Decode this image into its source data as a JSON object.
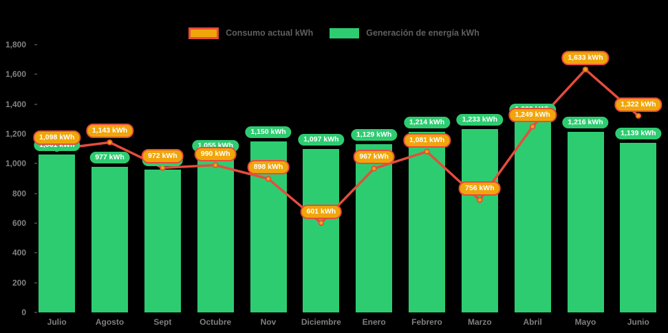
{
  "legend": {
    "items": [
      {
        "id": "consumption",
        "label": "Consumo actual kWh",
        "swatch_fill": "#F0A60B",
        "swatch_border": "#E74C3C"
      },
      {
        "id": "generation",
        "label": "Generación de energía kWh",
        "swatch_fill": "#2ECC71",
        "swatch_border": ""
      }
    ]
  },
  "y_axis": {
    "ticks": [
      {
        "label": "1,800",
        "value": 1800
      },
      {
        "label": "1,600",
        "value": 1600
      },
      {
        "label": "1,400",
        "value": 1400
      },
      {
        "label": "1,200",
        "value": 1200
      },
      {
        "label": "1,000",
        "value": 1000
      },
      {
        "label": "800",
        "value": 800
      },
      {
        "label": "600",
        "value": 600
      },
      {
        "label": "400",
        "value": 400
      },
      {
        "label": "200",
        "value": 200
      },
      {
        "label": "0",
        "value": 0
      }
    ]
  },
  "chart_data": {
    "type": "bar+line",
    "categories": [
      "Julio",
      "Agosto",
      "Sept",
      "Octubre",
      "Nov",
      "Diciembre",
      "Enero",
      "Febrero",
      "Marzo",
      "Abril",
      "Mayo",
      "Junio"
    ],
    "series": [
      {
        "name": "Generación de energía kWh",
        "type": "bar",
        "color": "#2ECC71",
        "values": [
          1061,
          977,
          960,
          1055,
          1150,
          1097,
          1129,
          1214,
          1233,
          1302,
          1216,
          1139
        ],
        "labels": [
          "1,061 kWh",
          "977 kWh",
          "960 kWh",
          "1,055 kWh",
          "1,150 kWh",
          "1,097 kWh",
          "1,129 kWh",
          "1,214 kWh",
          "1,233 kWh",
          "1,302 kWh",
          "1,216 kWh",
          "1,139 kWh"
        ]
      },
      {
        "name": "Consumo actual kWh",
        "type": "line",
        "color": "#E74C3C",
        "point_fill": "#F0A60B",
        "point_border": "#E74C3C",
        "values": [
          1098,
          1143,
          972,
          990,
          898,
          601,
          967,
          1081,
          756,
          1249,
          1633,
          1322
        ],
        "labels": [
          "1,098 kWh",
          "1,143 kWh",
          "972 kWh",
          "990 kWh",
          "898 kWh",
          "601 kWh",
          "967 kWh",
          "1,081 kWh",
          "756 kWh",
          "1,249 kWh",
          "1,633 kWh",
          "1,322 kWh"
        ]
      }
    ],
    "ylim": [
      0,
      1800
    ],
    "y_tick_step": 200,
    "grid": false,
    "legend_position": "top-center",
    "background": "#000000",
    "title": "",
    "xlabel": "",
    "ylabel": ""
  }
}
